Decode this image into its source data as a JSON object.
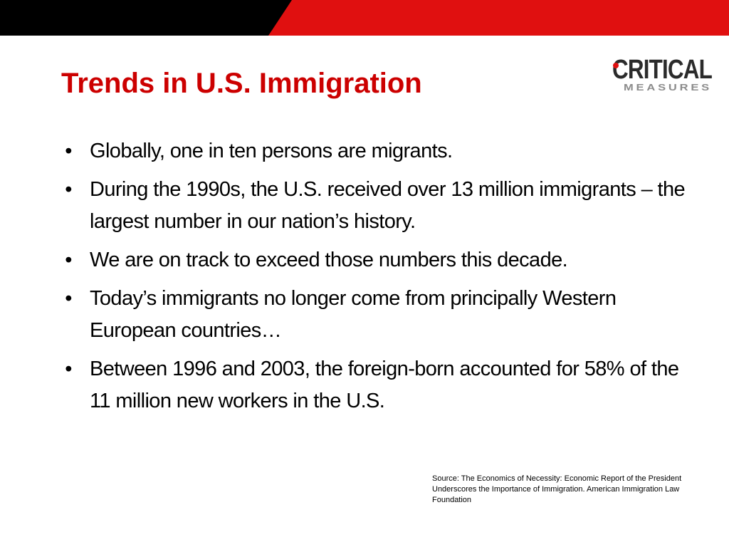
{
  "slide": {
    "title": "Trends in U.S. Immigration",
    "bullet_marker": "•",
    "bullets": [
      "Globally, one in ten persons are migrants.",
      "During the 1990s, the U.S. received over 13 million immigrants – the largest number in our nation’s history.",
      "We are on track to exceed those numbers this decade.",
      "Today’s immigrants no longer come from principally Western European countries…",
      "Between 1996 and 2003, the foreign-born accounted for 58% of the 11 million new workers in the U.S."
    ],
    "source": "Source: The Economics of Necessity: Economic Report of the President Underscores the Importance of Immigration. American Immigration Law Foundation"
  },
  "logo": {
    "wordmark": "CRITICAL",
    "tagline": "MEASURES"
  },
  "colors": {
    "title": "#cc0000",
    "band_dark": "#000000",
    "band_accent": "#e01010",
    "logo_dark": "#2b2b2b",
    "logo_gray": "#8c8c8c"
  }
}
